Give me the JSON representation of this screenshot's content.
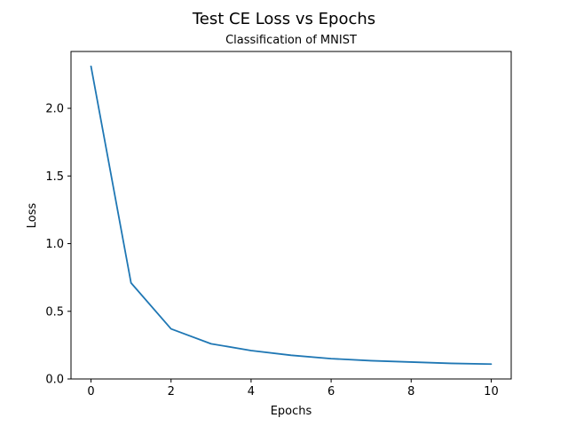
{
  "chart_data": {
    "type": "line",
    "title": "Test CE Loss vs Epochs",
    "subtitle": "Classification of MNIST",
    "xlabel": "Epochs",
    "ylabel": "Loss",
    "xlim": [
      -0.5,
      10.5
    ],
    "ylim": [
      0.0,
      2.42
    ],
    "xticks": [
      0,
      2,
      4,
      6,
      8,
      10
    ],
    "xtick_labels": [
      "0",
      "2",
      "4",
      "6",
      "8",
      "10"
    ],
    "yticks": [
      0.0,
      0.5,
      1.0,
      1.5,
      2.0
    ],
    "ytick_labels": [
      "0.0",
      "0.5",
      "1.0",
      "1.5",
      "2.0"
    ],
    "grid": false,
    "series": [
      {
        "color": "#1f77b4",
        "x": [
          0,
          1,
          2,
          3,
          4,
          5,
          6,
          7,
          8,
          9,
          10
        ],
        "y": [
          2.31,
          0.71,
          0.37,
          0.26,
          0.21,
          0.175,
          0.15,
          0.135,
          0.125,
          0.115,
          0.11
        ]
      }
    ]
  }
}
